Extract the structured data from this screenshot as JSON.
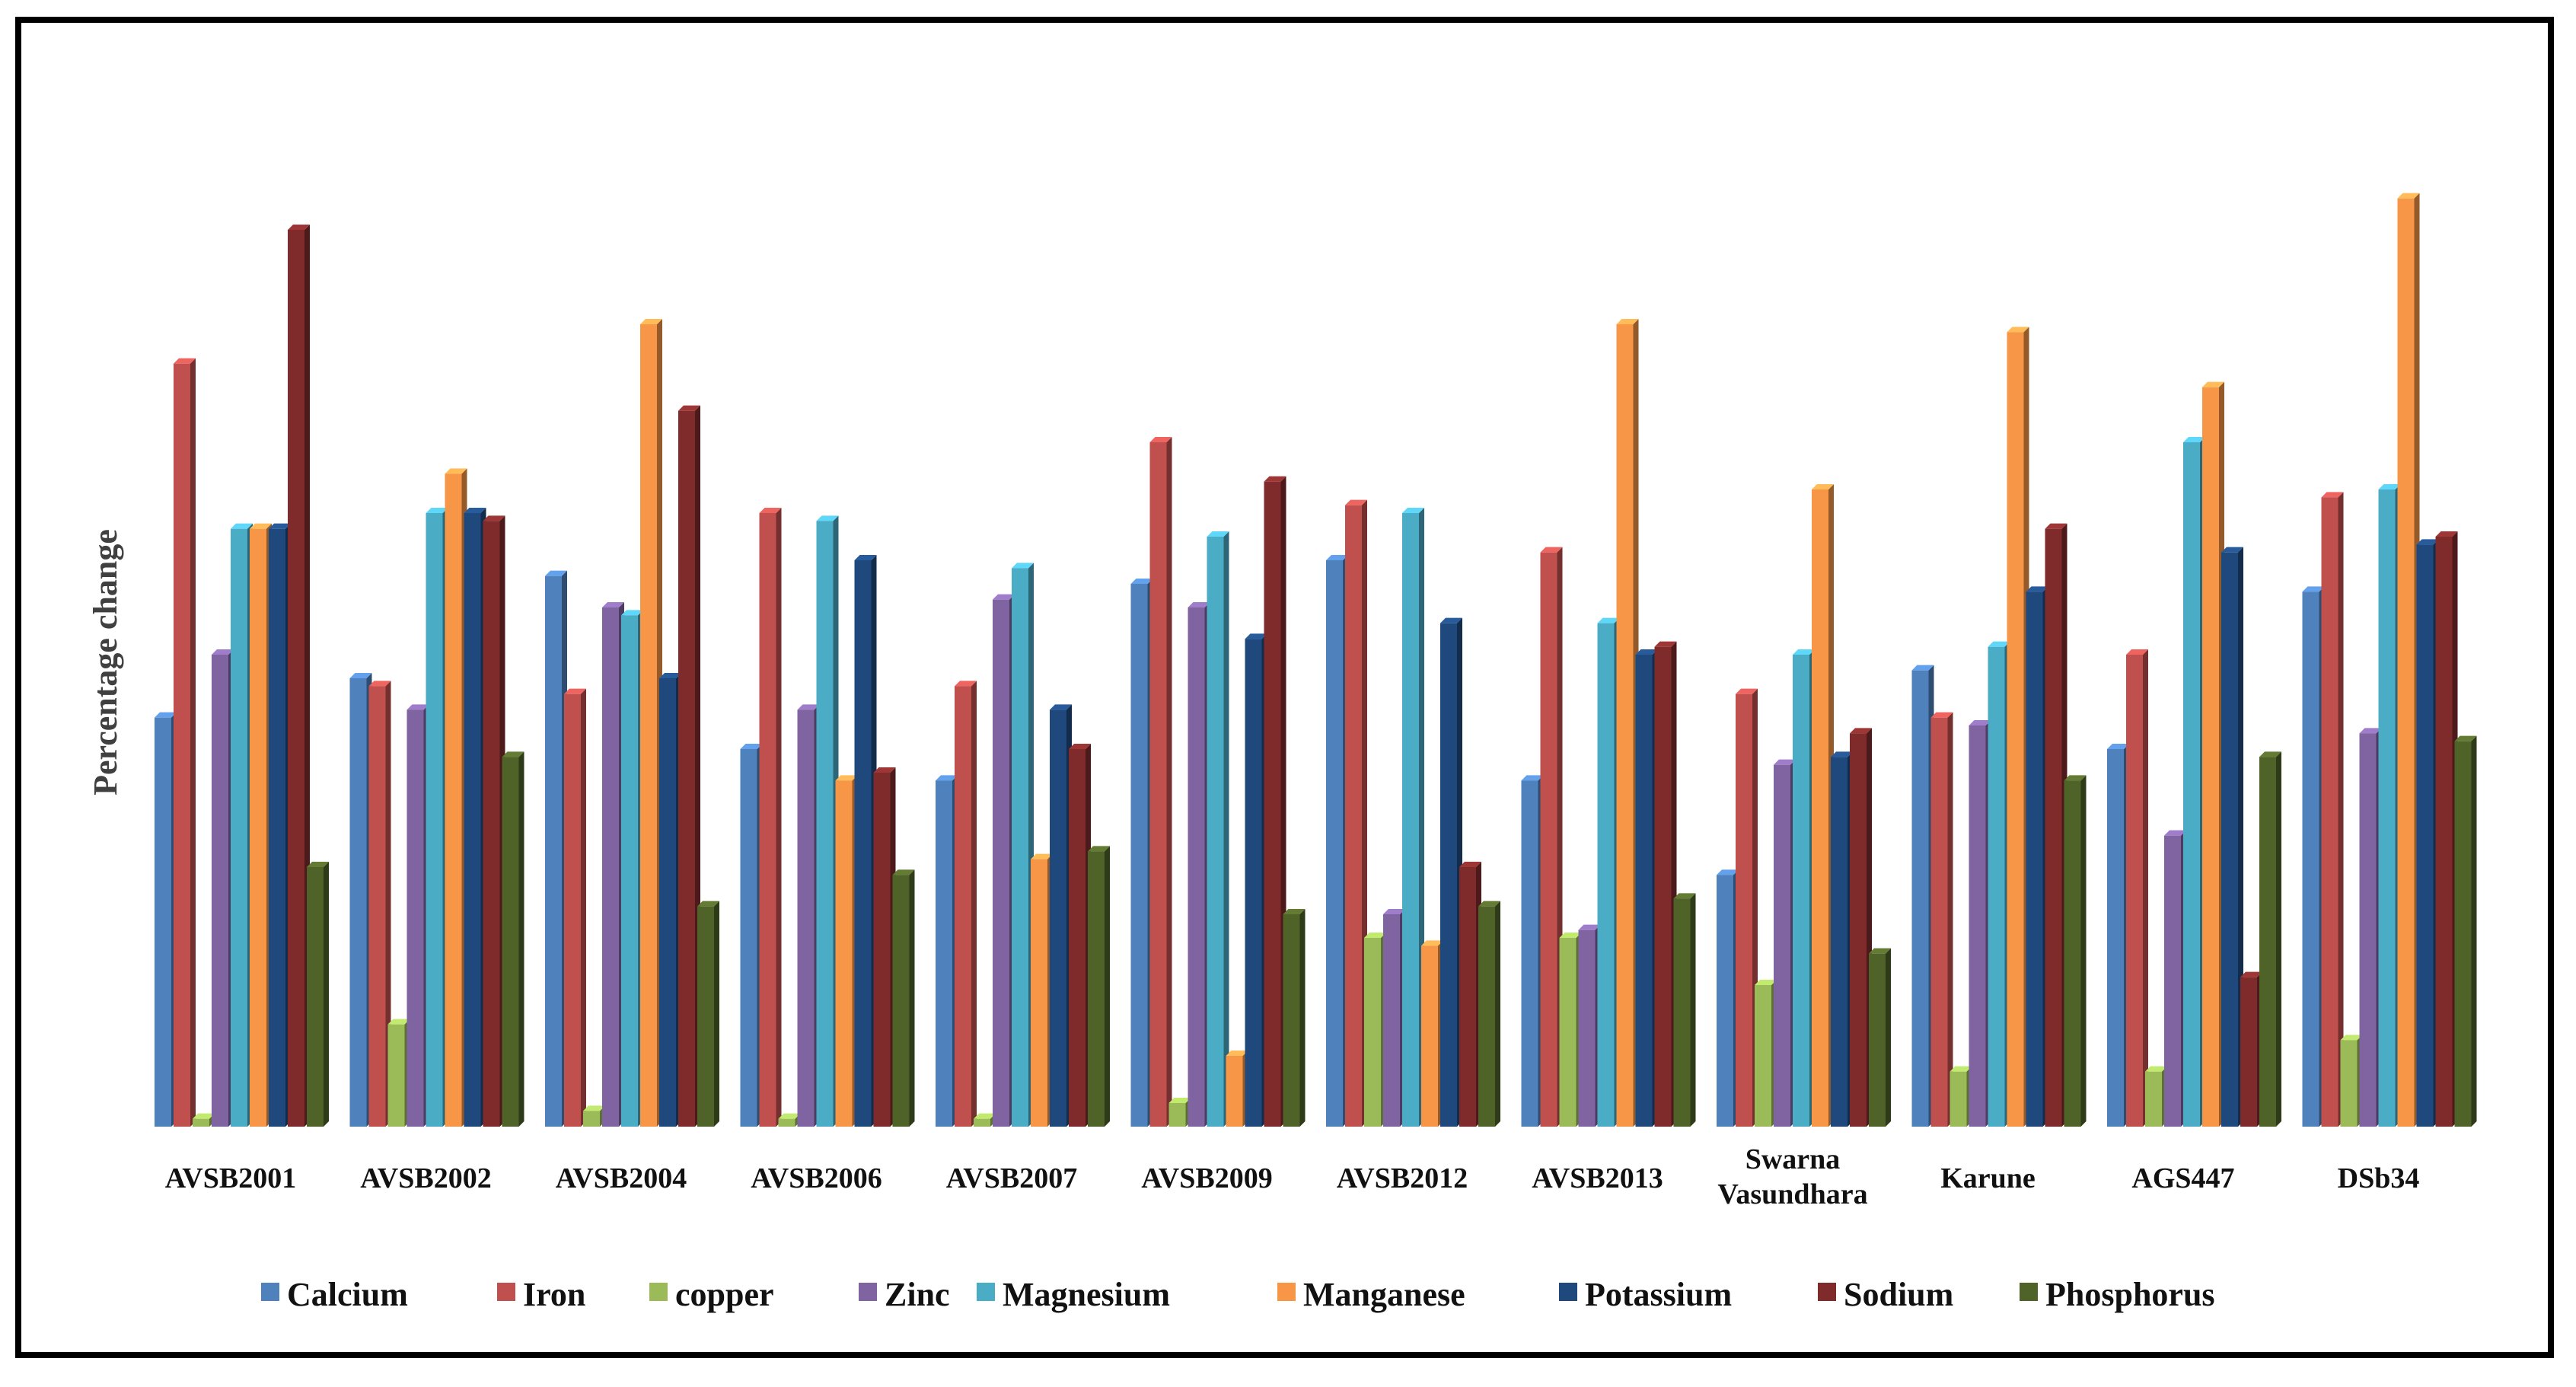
{
  "chart_data": {
    "type": "bar",
    "ylabel": "Percentage change",
    "categories": [
      "AVSB2001",
      "AVSB2002",
      "AVSB2004",
      "AVSB2006",
      "AVSB2007",
      "AVSB2009",
      "AVSB2012",
      "AVSB2013",
      "Swarna Vasundhara",
      "Karune",
      "AGS447",
      "DSb34"
    ],
    "series": [
      {
        "name": "Calcium",
        "color": "#4F81BD",
        "values": [
          52,
          57,
          70,
          48,
          44,
          69,
          72,
          44,
          32,
          58,
          48,
          68
        ]
      },
      {
        "name": "Iron",
        "color": "#C0504D",
        "values": [
          97,
          56,
          55,
          78,
          56,
          87,
          79,
          73,
          55,
          52,
          60,
          80
        ]
      },
      {
        "name": "copper",
        "color": "#9BBB59",
        "values": [
          1,
          13,
          2,
          1,
          1,
          3,
          24,
          24,
          18,
          7,
          7,
          11
        ]
      },
      {
        "name": "Zinc",
        "color": "#8064A2",
        "values": [
          60,
          53,
          66,
          53,
          67,
          66,
          27,
          25,
          46,
          51,
          37,
          50
        ]
      },
      {
        "name": "Magnesium",
        "color": "#4BACC6",
        "values": [
          76,
          78,
          65,
          77,
          71,
          75,
          78,
          64,
          60,
          61,
          87,
          81
        ]
      },
      {
        "name": "Manganese",
        "color": "#F79646",
        "values": [
          76,
          83,
          102,
          44,
          34,
          9,
          23,
          102,
          81,
          101,
          94,
          118
        ]
      },
      {
        "name": "Potassium",
        "color": "#1F497D",
        "values": [
          76,
          78,
          57,
          72,
          53,
          62,
          64,
          60,
          47,
          68,
          73,
          74
        ]
      },
      {
        "name": "Sodium",
        "color": "#7F2B2B",
        "values": [
          114,
          77,
          91,
          45,
          48,
          82,
          33,
          61,
          50,
          76,
          19,
          75
        ]
      },
      {
        "name": "Phosphorus",
        "color": "#4F6228",
        "values": [
          33,
          47,
          28,
          32,
          35,
          27,
          28,
          29,
          22,
          44,
          47,
          49
        ]
      }
    ],
    "legend_position": "bottom",
    "grid": false,
    "style": "3d-clustered-column",
    "ylim": [
      0,
      120
    ]
  }
}
